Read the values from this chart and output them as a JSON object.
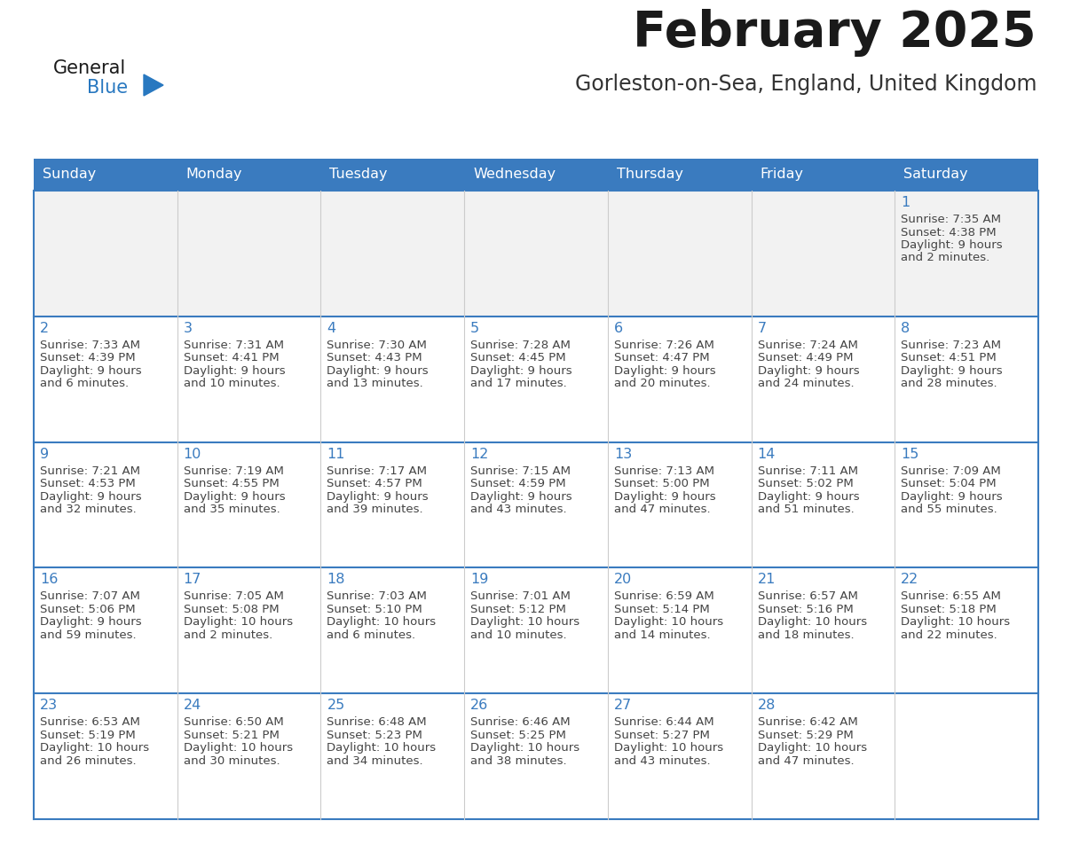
{
  "title": "February 2025",
  "subtitle": "Gorleston-on-Sea, England, United Kingdom",
  "days_of_week": [
    "Sunday",
    "Monday",
    "Tuesday",
    "Wednesday",
    "Thursday",
    "Friday",
    "Saturday"
  ],
  "header_bg": "#3a7bbf",
  "header_text": "#ffffff",
  "cell_bg_normal": "#ffffff",
  "cell_bg_first_row": "#f2f2f2",
  "border_color_strong": "#3a7bbf",
  "border_color_light": "#cccccc",
  "day_number_color": "#3a7bbf",
  "text_color": "#444444",
  "title_color": "#1a1a1a",
  "subtitle_color": "#333333",
  "logo_general_color": "#1a1a1a",
  "logo_blue_color": "#2878c0",
  "calendar_data": [
    [
      null,
      null,
      null,
      null,
      null,
      null,
      {
        "day": 1,
        "sunrise": "7:35 AM",
        "sunset": "4:38 PM",
        "daylight": "9 hours",
        "daylight2": "and 2 minutes."
      }
    ],
    [
      {
        "day": 2,
        "sunrise": "7:33 AM",
        "sunset": "4:39 PM",
        "daylight": "9 hours",
        "daylight2": "and 6 minutes."
      },
      {
        "day": 3,
        "sunrise": "7:31 AM",
        "sunset": "4:41 PM",
        "daylight": "9 hours",
        "daylight2": "and 10 minutes."
      },
      {
        "day": 4,
        "sunrise": "7:30 AM",
        "sunset": "4:43 PM",
        "daylight": "9 hours",
        "daylight2": "and 13 minutes."
      },
      {
        "day": 5,
        "sunrise": "7:28 AM",
        "sunset": "4:45 PM",
        "daylight": "9 hours",
        "daylight2": "and 17 minutes."
      },
      {
        "day": 6,
        "sunrise": "7:26 AM",
        "sunset": "4:47 PM",
        "daylight": "9 hours",
        "daylight2": "and 20 minutes."
      },
      {
        "day": 7,
        "sunrise": "7:24 AM",
        "sunset": "4:49 PM",
        "daylight": "9 hours",
        "daylight2": "and 24 minutes."
      },
      {
        "day": 8,
        "sunrise": "7:23 AM",
        "sunset": "4:51 PM",
        "daylight": "9 hours",
        "daylight2": "and 28 minutes."
      }
    ],
    [
      {
        "day": 9,
        "sunrise": "7:21 AM",
        "sunset": "4:53 PM",
        "daylight": "9 hours",
        "daylight2": "and 32 minutes."
      },
      {
        "day": 10,
        "sunrise": "7:19 AM",
        "sunset": "4:55 PM",
        "daylight": "9 hours",
        "daylight2": "and 35 minutes."
      },
      {
        "day": 11,
        "sunrise": "7:17 AM",
        "sunset": "4:57 PM",
        "daylight": "9 hours",
        "daylight2": "and 39 minutes."
      },
      {
        "day": 12,
        "sunrise": "7:15 AM",
        "sunset": "4:59 PM",
        "daylight": "9 hours",
        "daylight2": "and 43 minutes."
      },
      {
        "day": 13,
        "sunrise": "7:13 AM",
        "sunset": "5:00 PM",
        "daylight": "9 hours",
        "daylight2": "and 47 minutes."
      },
      {
        "day": 14,
        "sunrise": "7:11 AM",
        "sunset": "5:02 PM",
        "daylight": "9 hours",
        "daylight2": "and 51 minutes."
      },
      {
        "day": 15,
        "sunrise": "7:09 AM",
        "sunset": "5:04 PM",
        "daylight": "9 hours",
        "daylight2": "and 55 minutes."
      }
    ],
    [
      {
        "day": 16,
        "sunrise": "7:07 AM",
        "sunset": "5:06 PM",
        "daylight": "9 hours",
        "daylight2": "and 59 minutes."
      },
      {
        "day": 17,
        "sunrise": "7:05 AM",
        "sunset": "5:08 PM",
        "daylight": "10 hours",
        "daylight2": "and 2 minutes."
      },
      {
        "day": 18,
        "sunrise": "7:03 AM",
        "sunset": "5:10 PM",
        "daylight": "10 hours",
        "daylight2": "and 6 minutes."
      },
      {
        "day": 19,
        "sunrise": "7:01 AM",
        "sunset": "5:12 PM",
        "daylight": "10 hours",
        "daylight2": "and 10 minutes."
      },
      {
        "day": 20,
        "sunrise": "6:59 AM",
        "sunset": "5:14 PM",
        "daylight": "10 hours",
        "daylight2": "and 14 minutes."
      },
      {
        "day": 21,
        "sunrise": "6:57 AM",
        "sunset": "5:16 PM",
        "daylight": "10 hours",
        "daylight2": "and 18 minutes."
      },
      {
        "day": 22,
        "sunrise": "6:55 AM",
        "sunset": "5:18 PM",
        "daylight": "10 hours",
        "daylight2": "and 22 minutes."
      }
    ],
    [
      {
        "day": 23,
        "sunrise": "6:53 AM",
        "sunset": "5:19 PM",
        "daylight": "10 hours",
        "daylight2": "and 26 minutes."
      },
      {
        "day": 24,
        "sunrise": "6:50 AM",
        "sunset": "5:21 PM",
        "daylight": "10 hours",
        "daylight2": "and 30 minutes."
      },
      {
        "day": 25,
        "sunrise": "6:48 AM",
        "sunset": "5:23 PM",
        "daylight": "10 hours",
        "daylight2": "and 34 minutes."
      },
      {
        "day": 26,
        "sunrise": "6:46 AM",
        "sunset": "5:25 PM",
        "daylight": "10 hours",
        "daylight2": "and 38 minutes."
      },
      {
        "day": 27,
        "sunrise": "6:44 AM",
        "sunset": "5:27 PM",
        "daylight": "10 hours",
        "daylight2": "and 43 minutes."
      },
      {
        "day": 28,
        "sunrise": "6:42 AM",
        "sunset": "5:29 PM",
        "daylight": "10 hours",
        "daylight2": "and 47 minutes."
      },
      null
    ]
  ]
}
